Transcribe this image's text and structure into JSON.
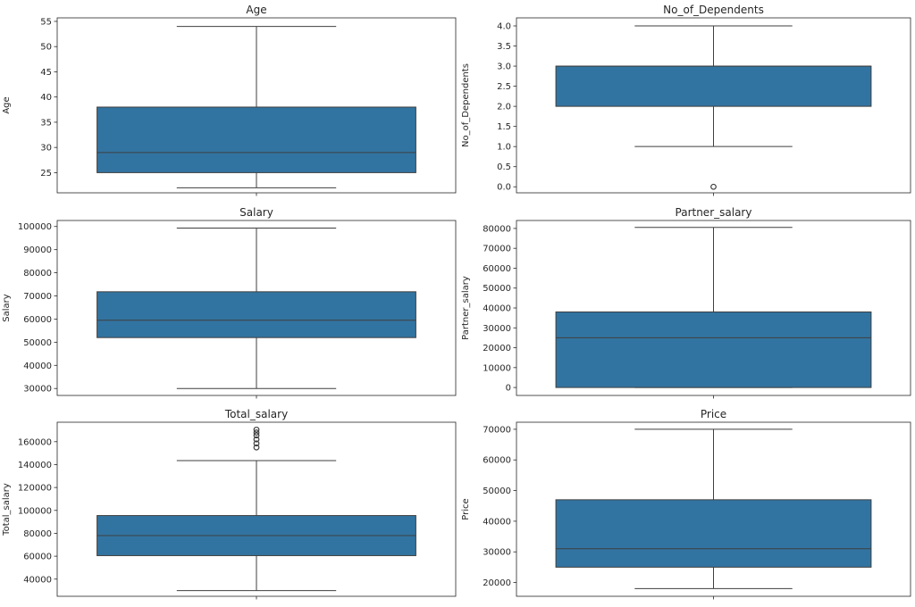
{
  "colors": {
    "box_fill": "#3274a1",
    "line": "#3f3f3f",
    "axis": "#262626"
  },
  "chart_data": [
    {
      "type": "box",
      "title": "Age",
      "ylabel": "Age",
      "ylim": [
        21,
        55.7
      ],
      "yticks": [
        25,
        30,
        35,
        40,
        45,
        50,
        55
      ],
      "tick_format": "int",
      "whisker_low": 22,
      "q1": 25,
      "median": 29,
      "q3": 38,
      "whisker_high": 54,
      "outliers": []
    },
    {
      "type": "box",
      "title": "No_of_Dependents",
      "ylabel": "No_of_Dependents",
      "ylim": [
        -0.15,
        4.2
      ],
      "yticks": [
        0.0,
        0.5,
        1.0,
        1.5,
        2.0,
        2.5,
        3.0,
        3.5,
        4.0
      ],
      "tick_format": "one_decimal",
      "whisker_low": 1,
      "q1": 2,
      "median": 3,
      "q3": 3,
      "whisker_high": 4,
      "outliers": [
        0
      ]
    },
    {
      "type": "box",
      "title": "Salary",
      "ylabel": "Salary",
      "ylim": [
        27000,
        102600
      ],
      "yticks": [
        30000,
        40000,
        50000,
        60000,
        70000,
        80000,
        90000,
        100000
      ],
      "tick_format": "int",
      "whisker_low": 30000,
      "q1": 52000,
      "median": 59500,
      "q3": 71800,
      "whisker_high": 99300,
      "outliers": []
    },
    {
      "type": "box",
      "title": "Partner_salary",
      "ylabel": "Partner_salary",
      "ylim": [
        -4000,
        84000
      ],
      "yticks": [
        0,
        10000,
        20000,
        30000,
        40000,
        50000,
        60000,
        70000,
        80000
      ],
      "tick_format": "int",
      "whisker_low": 0,
      "q1": 0,
      "median": 25000,
      "q3": 38000,
      "whisker_high": 80500,
      "outliers": []
    },
    {
      "type": "box",
      "title": "Total_salary",
      "ylabel": "Total_salary",
      "ylim": [
        25000,
        177000
      ],
      "yticks": [
        40000,
        60000,
        80000,
        100000,
        120000,
        140000,
        160000
      ],
      "tick_format": "int",
      "whisker_low": 30000,
      "q1": 60500,
      "median": 78000,
      "q3": 95500,
      "whisker_high": 143500,
      "outliers": [
        155000,
        158500,
        162000,
        165500,
        168000,
        170500
      ]
    },
    {
      "type": "box",
      "title": "Price",
      "ylabel": "Price",
      "ylim": [
        15500,
        72300
      ],
      "yticks": [
        20000,
        30000,
        40000,
        50000,
        60000,
        70000
      ],
      "tick_format": "int",
      "whisker_low": 18000,
      "q1": 25000,
      "median": 31000,
      "q3": 47000,
      "whisker_high": 70000,
      "outliers": []
    }
  ]
}
